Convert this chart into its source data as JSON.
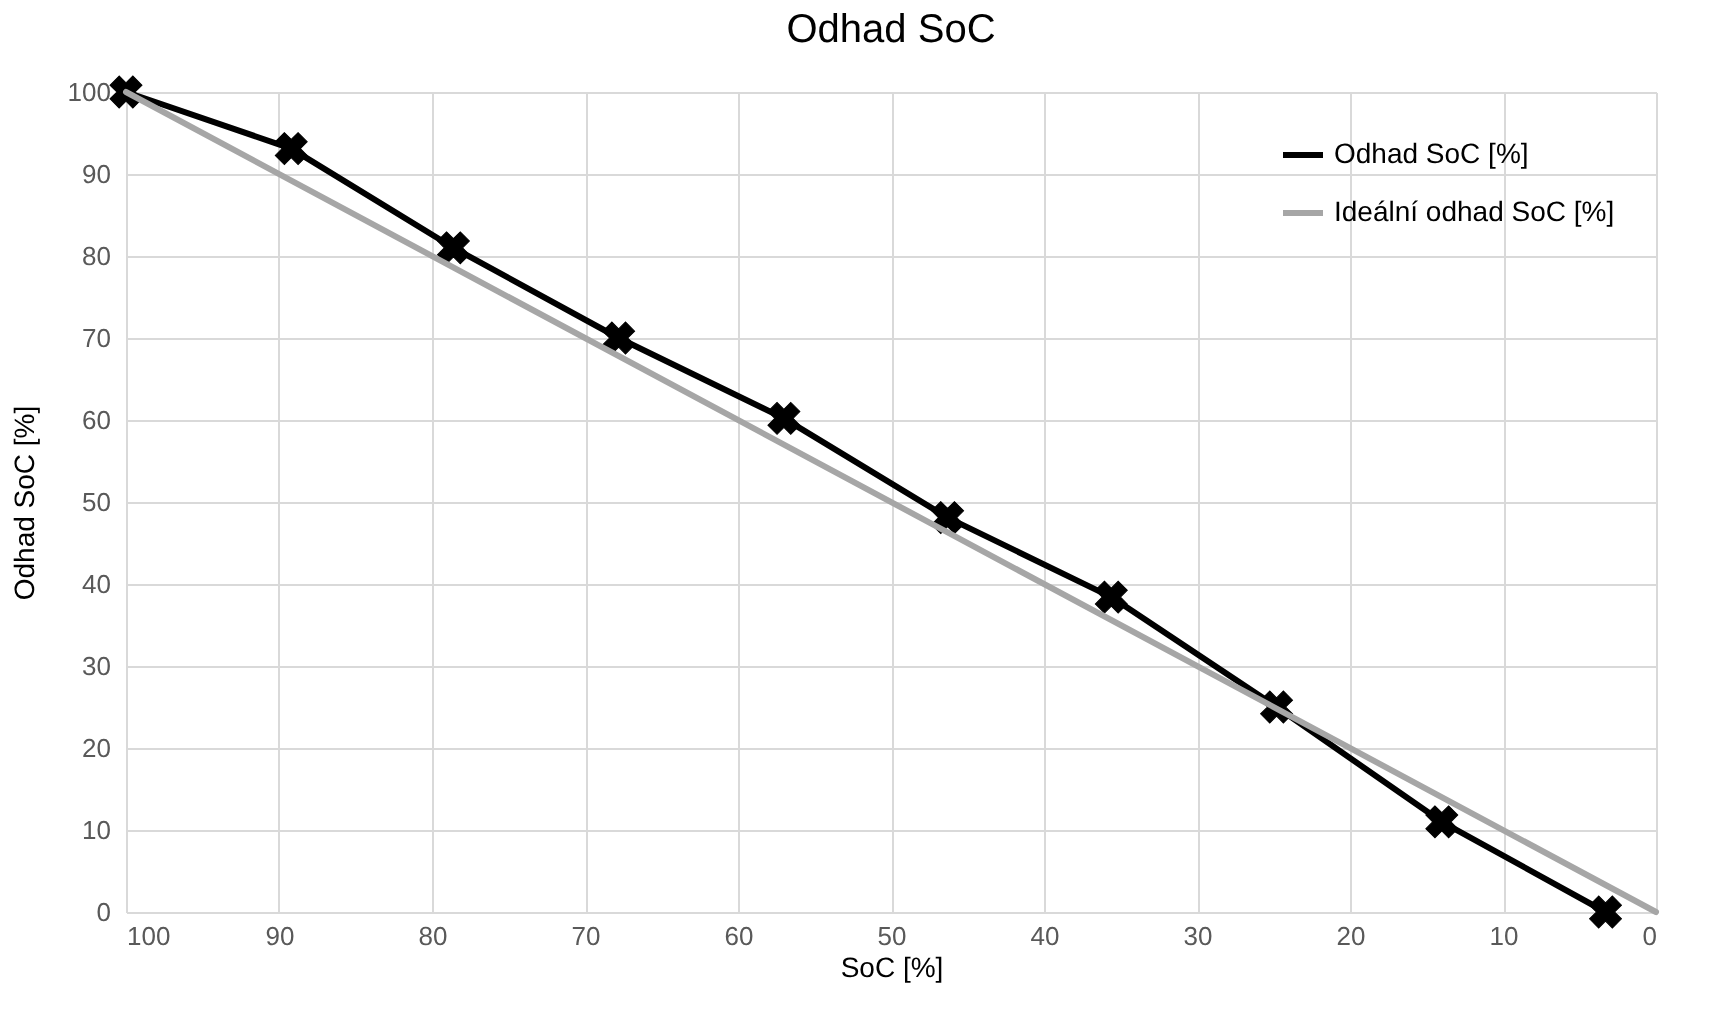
{
  "chart_data": {
    "type": "line",
    "title": "Odhad SoC",
    "xlabel": "SoC  [%]",
    "ylabel": "Odhad SoC  [%]",
    "xlim": [
      100,
      0
    ],
    "xticks": [
      100,
      90,
      80,
      70,
      60,
      50,
      40,
      30,
      20,
      10,
      0
    ],
    "ylim": [
      0,
      100
    ],
    "yticks": [
      0,
      10,
      20,
      30,
      40,
      50,
      60,
      70,
      80,
      90,
      100
    ],
    "grid": true,
    "legend": "top right",
    "series": [
      {
        "name": "Odhad SoC [%]",
        "color": "#000000",
        "marker": "cross",
        "x": [
          100,
          89.2,
          78.6,
          67.8,
          57,
          46.3,
          35.6,
          24.8,
          14,
          3.3
        ],
        "values": [
          100,
          93.1,
          81,
          70,
          60.2,
          48.1,
          38.4,
          25,
          11,
          0
        ]
      },
      {
        "name": "Ideální odhad SoC [%]",
        "color": "#a6a6a6",
        "marker": "none",
        "x": [
          100,
          0
        ],
        "values": [
          100,
          0
        ]
      }
    ]
  }
}
